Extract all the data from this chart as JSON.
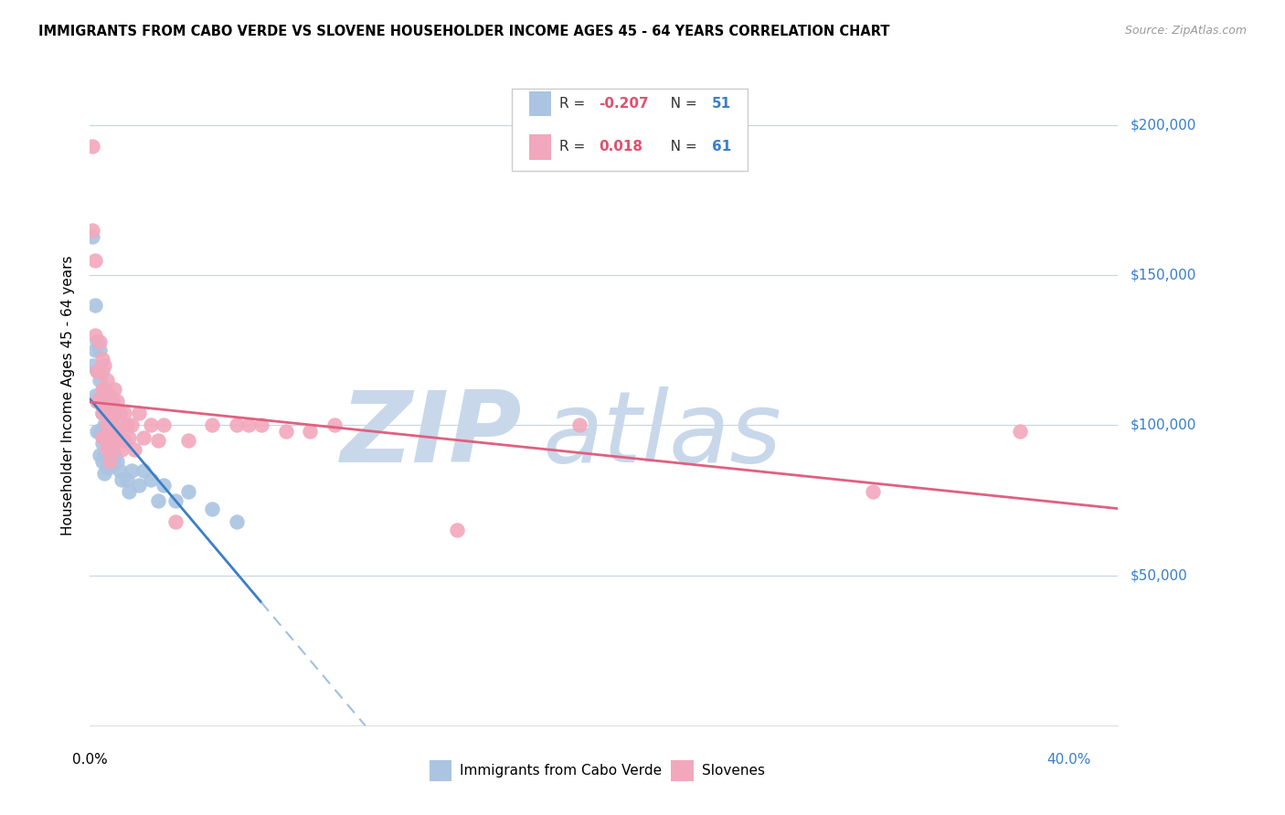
{
  "title": "IMMIGRANTS FROM CABO VERDE VS SLOVENE HOUSEHOLDER INCOME AGES 45 - 64 YEARS CORRELATION CHART",
  "source": "Source: ZipAtlas.com",
  "ylabel": "Householder Income Ages 45 - 64 years",
  "ytick_labels": [
    "$50,000",
    "$100,000",
    "$150,000",
    "$200,000"
  ],
  "ytick_values": [
    50000,
    100000,
    150000,
    200000
  ],
  "ylim": [
    0,
    220000
  ],
  "xlim": [
    0.0,
    0.42
  ],
  "cabo_verde_R": -0.207,
  "cabo_verde_N": 51,
  "slovene_R": 0.018,
  "slovene_N": 61,
  "cabo_verde_color": "#aac4e2",
  "slovene_color": "#f2a8bc",
  "cabo_verde_line_color": "#3a7fc8",
  "slovene_line_color": "#e06080",
  "dashed_line_color": "#a0c0e0",
  "watermark_color": "#c8d8ea",
  "legend_R_color": "#e05070",
  "legend_N_color": "#3a7fc8",
  "cabo_verde_x": [
    0.001,
    0.001,
    0.002,
    0.002,
    0.002,
    0.003,
    0.003,
    0.003,
    0.003,
    0.004,
    0.004,
    0.004,
    0.004,
    0.004,
    0.005,
    0.005,
    0.005,
    0.005,
    0.005,
    0.005,
    0.006,
    0.006,
    0.006,
    0.006,
    0.006,
    0.006,
    0.007,
    0.007,
    0.007,
    0.007,
    0.008,
    0.008,
    0.008,
    0.009,
    0.009,
    0.01,
    0.011,
    0.012,
    0.013,
    0.015,
    0.016,
    0.017,
    0.02,
    0.022,
    0.025,
    0.028,
    0.03,
    0.035,
    0.04,
    0.05,
    0.06
  ],
  "cabo_verde_y": [
    163000,
    120000,
    140000,
    125000,
    110000,
    128000,
    118000,
    108000,
    98000,
    125000,
    115000,
    108000,
    98000,
    90000,
    118000,
    110000,
    104000,
    98000,
    94000,
    88000,
    112000,
    106000,
    100000,
    96000,
    90000,
    84000,
    108000,
    100000,
    94000,
    86000,
    100000,
    94000,
    86000,
    96000,
    88000,
    90000,
    88000,
    85000,
    82000,
    82000,
    78000,
    85000,
    80000,
    85000,
    82000,
    75000,
    80000,
    75000,
    78000,
    72000,
    68000
  ],
  "slovene_x": [
    0.001,
    0.001,
    0.002,
    0.002,
    0.003,
    0.003,
    0.004,
    0.004,
    0.004,
    0.005,
    0.005,
    0.005,
    0.005,
    0.006,
    0.006,
    0.006,
    0.006,
    0.007,
    0.007,
    0.007,
    0.007,
    0.008,
    0.008,
    0.008,
    0.008,
    0.009,
    0.009,
    0.009,
    0.01,
    0.01,
    0.01,
    0.011,
    0.011,
    0.012,
    0.012,
    0.013,
    0.013,
    0.014,
    0.014,
    0.015,
    0.016,
    0.017,
    0.018,
    0.02,
    0.022,
    0.025,
    0.028,
    0.03,
    0.035,
    0.04,
    0.05,
    0.06,
    0.065,
    0.07,
    0.08,
    0.09,
    0.1,
    0.15,
    0.2,
    0.32,
    0.38
  ],
  "slovene_y": [
    193000,
    165000,
    155000,
    130000,
    118000,
    108000,
    128000,
    118000,
    108000,
    122000,
    112000,
    104000,
    96000,
    120000,
    112000,
    104000,
    96000,
    115000,
    108000,
    100000,
    92000,
    110000,
    104000,
    96000,
    88000,
    108000,
    100000,
    92000,
    112000,
    104000,
    96000,
    108000,
    98000,
    104000,
    96000,
    100000,
    92000,
    104000,
    95000,
    100000,
    96000,
    100000,
    92000,
    104000,
    96000,
    100000,
    95000,
    100000,
    68000,
    95000,
    100000,
    100000,
    100000,
    100000,
    98000,
    98000,
    100000,
    65000,
    100000,
    78000,
    98000
  ]
}
